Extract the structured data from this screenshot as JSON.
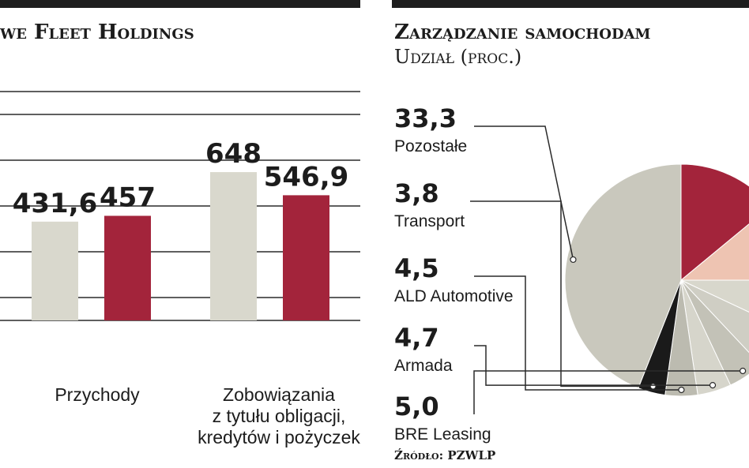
{
  "left_chart": {
    "title": "we Fleet Holdings",
    "chart_data": {
      "type": "bar",
      "title": "we Fleet Holdings",
      "categories": [
        "Przychody",
        [
          "Zobowiązania",
          "z tytułu obligacji,",
          "kredytów i pożyczek"
        ]
      ],
      "series": [
        {
          "values": [
            431.6,
            648
          ],
          "color": "#d9d8cd"
        },
        {
          "values": [
            457,
            546.9
          ],
          "color": "#a3243b"
        }
      ],
      "value_labels": [
        [
          "431,6",
          "648"
        ],
        [
          "457",
          "546,9"
        ]
      ],
      "ylim": [
        0,
        1000
      ],
      "grid": true
    }
  },
  "right_chart": {
    "title": "Zarządzanie samochodam",
    "subtitle": "Udział (proc.)",
    "source": "Źródło: PZWLP",
    "chart_data": {
      "type": "pie",
      "title": "Zarządzanie samochodam",
      "subtitle": "Udział (proc.)",
      "labels": [
        "Pozostałe",
        "Transport",
        "ALD Automotive",
        "Armada",
        "BRE Leasing"
      ],
      "value_labels": [
        "33,3",
        "3,8",
        "4,5",
        "4,7",
        "5,0"
      ],
      "values": [
        33.3,
        3.8,
        4.5,
        4.7,
        5.0
      ],
      "colors": [
        "#c9c8bd",
        "#1a1a1a",
        "#bcbbb0",
        "#d6d5cb",
        "#c3c2b7"
      ],
      "other_visible_slices_colors": [
        "#a3243b",
        "#eec4b2",
        "#d8d7cc"
      ]
    }
  }
}
